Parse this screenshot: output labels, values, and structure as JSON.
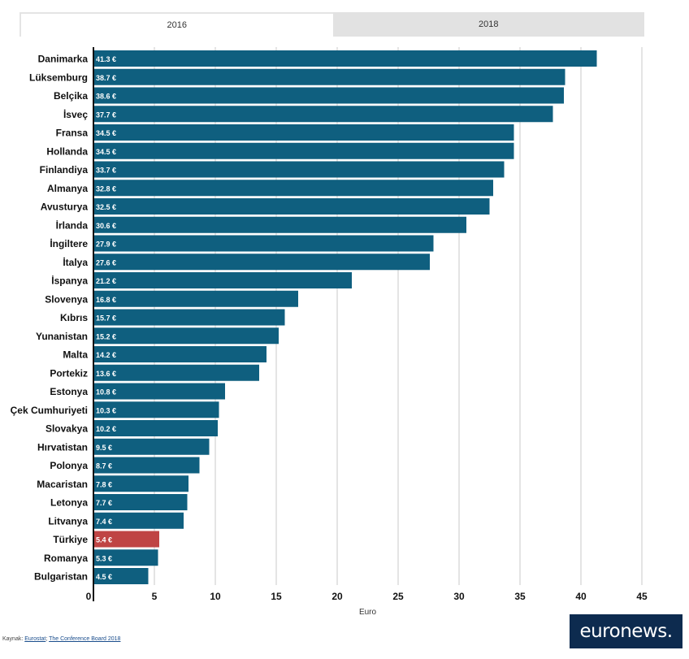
{
  "tabs": [
    {
      "label": "2016",
      "active": true
    },
    {
      "label": "2018",
      "active": false
    }
  ],
  "colors": {
    "bar": "#0f5f7f",
    "highlight": "#bf4444",
    "grid": "#e4e4e4",
    "axis": "#111111",
    "logo_bg": "#0d2b4f"
  },
  "chart_data": {
    "type": "bar",
    "orientation": "horizontal",
    "categories": [
      "Danimarka",
      "Lüksemburg",
      "Belçika",
      "İsveç",
      "Fransa",
      "Hollanda",
      "Finlandiya",
      "Almanya",
      "Avusturya",
      "İrlanda",
      "İngiltere",
      "İtalya",
      "İspanya",
      "Slovenya",
      "Kıbrıs",
      "Yunanistan",
      "Malta",
      "Portekiz",
      "Estonya",
      "Çek Cumhuriyeti",
      "Slovakya",
      "Hırvatistan",
      "Polonya",
      "Macaristan",
      "Letonya",
      "Litvanya",
      "Türkiye",
      "Romanya",
      "Bulgaristan"
    ],
    "values": [
      41.3,
      38.7,
      38.6,
      37.7,
      34.5,
      34.5,
      33.7,
      32.8,
      32.5,
      30.6,
      27.9,
      27.6,
      21.2,
      16.8,
      15.7,
      15.2,
      14.2,
      13.6,
      10.8,
      10.3,
      10.2,
      9.5,
      8.7,
      7.8,
      7.7,
      7.4,
      5.4,
      5.3,
      4.5
    ],
    "labels": [
      "41.3 €",
      "38.7 €",
      "38.6 €",
      "37.7 €",
      "34.5 €",
      "34.5 €",
      "33.7 €",
      "32.8 €",
      "32.5 €",
      "30.6 €",
      "27.9 €",
      "27.6 €",
      "21.2 €",
      "16.8 €",
      "15.7 €",
      "15.2 €",
      "14.2 €",
      "13.6 €",
      "10.8 €",
      "10.3 €",
      "10.2 €",
      "9.5 €",
      "8.7 €",
      "7.8 €",
      "7.7 €",
      "7.4 €",
      "5.4 €",
      "5.3 €",
      "4.5 €"
    ],
    "highlight": "Türkiye",
    "xlabel": "Euro",
    "xlim": [
      0,
      45
    ],
    "xticks": [
      0,
      5,
      10,
      15,
      20,
      25,
      30,
      35,
      40,
      45
    ],
    "grid": true
  },
  "source": {
    "prefix": "Kaynak:",
    "links": [
      "Eurostat",
      "The Conference Board 2018"
    ]
  },
  "logo": {
    "text": "euronews."
  }
}
